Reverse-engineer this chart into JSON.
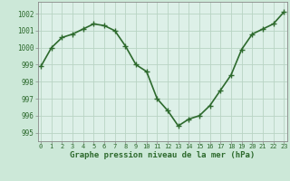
{
  "x": [
    0,
    1,
    2,
    3,
    4,
    5,
    6,
    7,
    8,
    9,
    10,
    11,
    12,
    13,
    14,
    15,
    16,
    17,
    18,
    19,
    20,
    21,
    22,
    23
  ],
  "y": [
    998.9,
    1000.0,
    1000.6,
    1000.8,
    1001.1,
    1001.4,
    1001.3,
    1001.0,
    1000.1,
    999.0,
    998.6,
    997.0,
    996.3,
    995.4,
    995.8,
    996.0,
    996.6,
    997.5,
    998.4,
    999.9,
    1000.8,
    1001.1,
    1001.4,
    1002.1
  ],
  "line_color": "#2d6a2d",
  "marker": "+",
  "bg_color": "#cce8d8",
  "grid_color": "#b8d4c4",
  "plot_bg_color": "#ddf0e8",
  "xlabel": "Graphe pression niveau de la mer (hPa)",
  "xlabel_color": "#2d6a2d",
  "yticks": [
    995,
    996,
    997,
    998,
    999,
    1000,
    1001,
    1002
  ],
  "xticks": [
    0,
    1,
    2,
    3,
    4,
    5,
    6,
    7,
    8,
    9,
    10,
    11,
    12,
    13,
    14,
    15,
    16,
    17,
    18,
    19,
    20,
    21,
    22,
    23
  ],
  "ylim": [
    994.5,
    1002.7
  ],
  "xlim": [
    -0.3,
    23.3
  ],
  "tick_color": "#2d6a2d",
  "axis_color": "#888888",
  "line_width": 1.2,
  "marker_size": 4
}
